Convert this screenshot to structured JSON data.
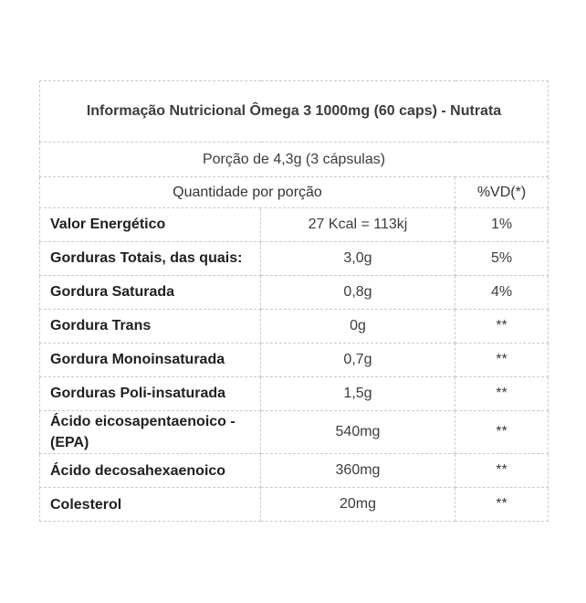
{
  "table": {
    "title": "Informação Nutricional Ômega 3 1000mg (60 caps) - Nutrata",
    "portion": "Porção de 4,3g (3 cápsulas)",
    "quantity_header": "Quantidade por porção",
    "vd_header": "%VD(*)",
    "rows": [
      {
        "label": "Valor Energético",
        "value": "27 Kcal = 113kj",
        "vd": "1%"
      },
      {
        "label": "Gorduras Totais, das quais:",
        "value": "3,0g",
        "vd": "5%"
      },
      {
        "label": "Gordura Saturada",
        "value": "0,8g",
        "vd": "4%"
      },
      {
        "label": "Gordura Trans",
        "value": "0g",
        "vd": "**"
      },
      {
        "label": "Gordura Monoinsaturada",
        "value": "0,7g",
        "vd": "**"
      },
      {
        "label": "Gorduras Poli-insaturada",
        "value": "1,5g",
        "vd": "**"
      },
      {
        "label": "Ácido eicosapentaenoico - (EPA)",
        "value": "540mg",
        "vd": "**"
      },
      {
        "label": "Ácido decosahexaenoico",
        "value": "360mg",
        "vd": "**"
      },
      {
        "label": "Colesterol",
        "value": "20mg",
        "vd": "**"
      }
    ],
    "colors": {
      "border": "#cbcbcb",
      "label_text": "#1f1f1f",
      "value_text": "#3c3c3c",
      "background": "#ffffff"
    }
  }
}
